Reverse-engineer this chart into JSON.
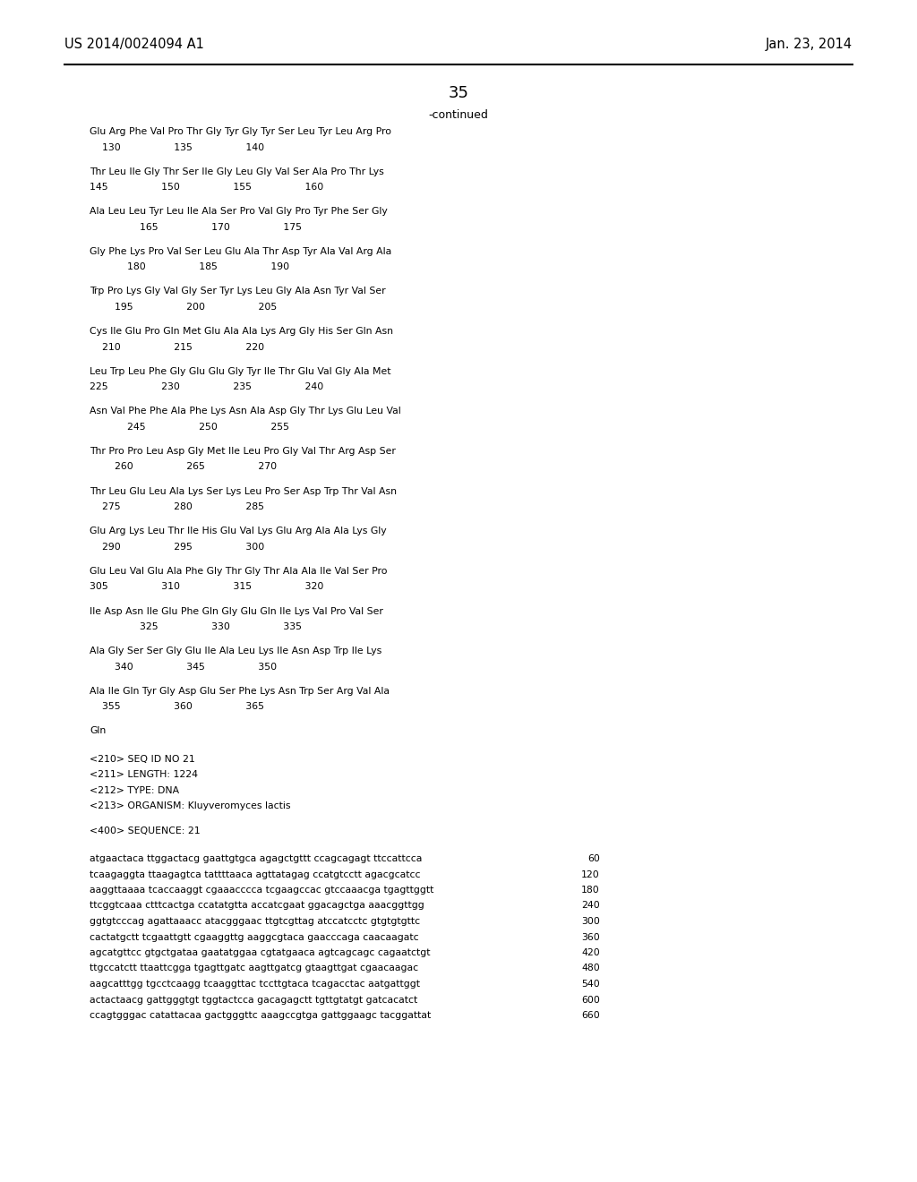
{
  "header_left": "US 2014/0024094 A1",
  "header_right": "Jan. 23, 2014",
  "page_number": "35",
  "continued_label": "-continued",
  "background_color": "#ffffff",
  "text_color": "#000000",
  "sequence_lines": [
    "Glu Arg Phe Val Pro Thr Gly Tyr Gly Tyr Ser Leu Tyr Leu Arg Pro",
    "    130                 135                 140",
    "",
    "Thr Leu Ile Gly Thr Ser Ile Gly Leu Gly Val Ser Ala Pro Thr Lys",
    "145                 150                 155                 160",
    "",
    "Ala Leu Leu Tyr Leu Ile Ala Ser Pro Val Gly Pro Tyr Phe Ser Gly",
    "                165                 170                 175",
    "",
    "Gly Phe Lys Pro Val Ser Leu Glu Ala Thr Asp Tyr Ala Val Arg Ala",
    "            180                 185                 190",
    "",
    "Trp Pro Lys Gly Val Gly Ser Tyr Lys Leu Gly Ala Asn Tyr Val Ser",
    "        195                 200                 205",
    "",
    "Cys Ile Glu Pro Gln Met Glu Ala Ala Lys Arg Gly His Ser Gln Asn",
    "    210                 215                 220",
    "",
    "Leu Trp Leu Phe Gly Glu Glu Gly Tyr Ile Thr Glu Val Gly Ala Met",
    "225                 230                 235                 240",
    "",
    "Asn Val Phe Phe Ala Phe Lys Asn Ala Asp Gly Thr Lys Glu Leu Val",
    "            245                 250                 255",
    "",
    "Thr Pro Pro Leu Asp Gly Met Ile Leu Pro Gly Val Thr Arg Asp Ser",
    "        260                 265                 270",
    "",
    "Thr Leu Glu Leu Ala Lys Ser Lys Leu Pro Ser Asp Trp Thr Val Asn",
    "    275                 280                 285",
    "",
    "Glu Arg Lys Leu Thr Ile His Glu Val Lys Glu Arg Ala Ala Lys Gly",
    "    290                 295                 300",
    "",
    "Glu Leu Val Glu Ala Phe Gly Thr Gly Thr Ala Ala Ile Val Ser Pro",
    "305                 310                 315                 320",
    "",
    "Ile Asp Asn Ile Glu Phe Gln Gly Glu Gln Ile Lys Val Pro Val Ser",
    "                325                 330                 335",
    "",
    "Ala Gly Ser Ser Gly Glu Ile Ala Leu Lys Ile Asn Asp Trp Ile Lys",
    "        340                 345                 350",
    "",
    "Ala Ile Gln Tyr Gly Asp Glu Ser Phe Lys Asn Trp Ser Arg Val Ala",
    "    355                 360                 365",
    "",
    "Gln"
  ],
  "seq_info_lines": [
    "<210> SEQ ID NO 21",
    "<211> LENGTH: 1224",
    "<212> TYPE: DNA",
    "<213> ORGANISM: Kluyveromyces lactis",
    "",
    "<400> SEQUENCE: 21"
  ],
  "dna_lines": [
    [
      "atgaactaca ttggactacg gaattgtgca agagctgttt ccagcagagt ttccattcca",
      "60"
    ],
    [
      "tcaagaggta ttaagagtca tattttaaca agttatagag ccatgtcctt agacgcatcc",
      "120"
    ],
    [
      "aaggttaaaa tcaccaaggt cgaaacccca tcgaagccac gtccaaacga tgagttggtt",
      "180"
    ],
    [
      "ttcggtcaaa ctttcactga ccatatgtta accatcgaat ggacagctga aaacggttgg",
      "240"
    ],
    [
      "ggtgtcccag agattaaacc atacgggaac ttgtcgttag atccatcctc gtgtgtgttc",
      "300"
    ],
    [
      "cactatgctt tcgaattgtt cgaaggttg aaggcgtaca gaacccaga caacaagatc",
      "360"
    ],
    [
      "agcatgttcc gtgctgataa gaatatggaa cgtatgaaca agtcagcagc cagaatctgt",
      "420"
    ],
    [
      "ttgccatctt ttaattcgga tgagttgatc aagttgatcg gtaagttgat cgaacaagac",
      "480"
    ],
    [
      "aagcatttgg tgcctcaagg tcaaggttac tccttgtaca tcagacctac aatgattggt",
      "540"
    ],
    [
      "actactaacg gattgggtgt tggtactcca gacagagctt tgttgtatgt gatcacatct",
      "600"
    ],
    [
      "ccagtgggac catattacaa gactgggttc aaagccgtga gattggaagc tacggattat",
      "660"
    ]
  ]
}
